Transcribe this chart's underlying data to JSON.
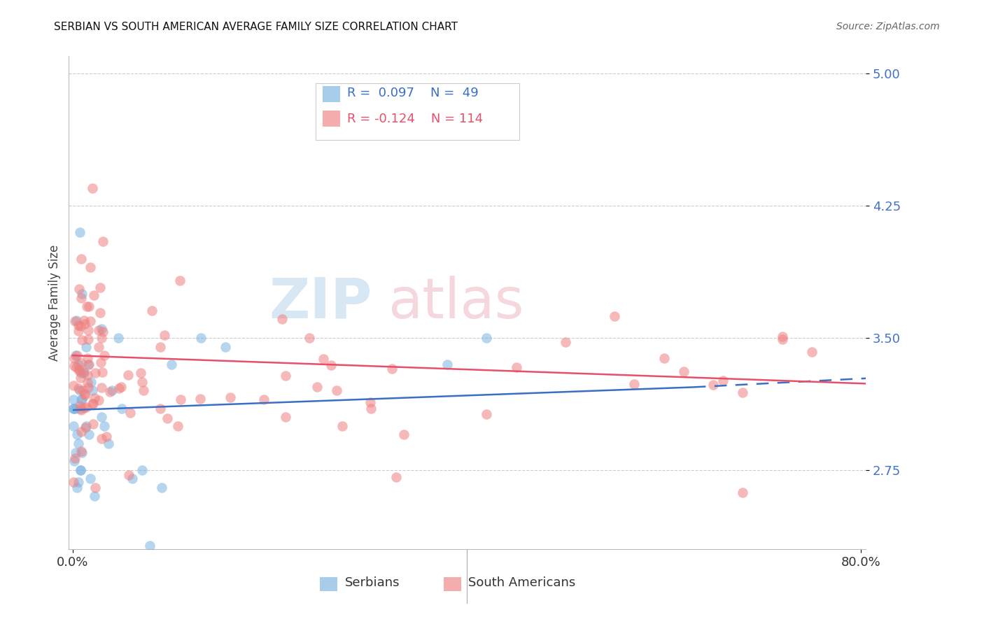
{
  "title": "SERBIAN VS SOUTH AMERICAN AVERAGE FAMILY SIZE CORRELATION CHART",
  "source": "Source: ZipAtlas.com",
  "ylabel": "Average Family Size",
  "yticks": [
    2.75,
    3.5,
    4.25,
    5.0
  ],
  "ymin": 2.3,
  "ymax": 5.1,
  "xmin": -0.004,
  "xmax": 0.805,
  "serbians_color": "#7ab3e0",
  "south_americans_color": "#f08080",
  "serbian_trend_x": [
    0.0,
    0.63,
    0.805
  ],
  "serbian_trend_y": [
    3.09,
    3.22,
    3.27
  ],
  "south_american_trend_x": [
    0.0,
    0.805
  ],
  "south_american_trend_y": [
    3.4,
    3.24
  ],
  "grid_color": "#cccccc",
  "spine_color": "#bbbbbb",
  "ytick_color": "#4472c4",
  "title_fontsize": 11,
  "source_fontsize": 10,
  "ylabel_fontsize": 12,
  "ytick_fontsize": 13,
  "xtick_fontsize": 13
}
